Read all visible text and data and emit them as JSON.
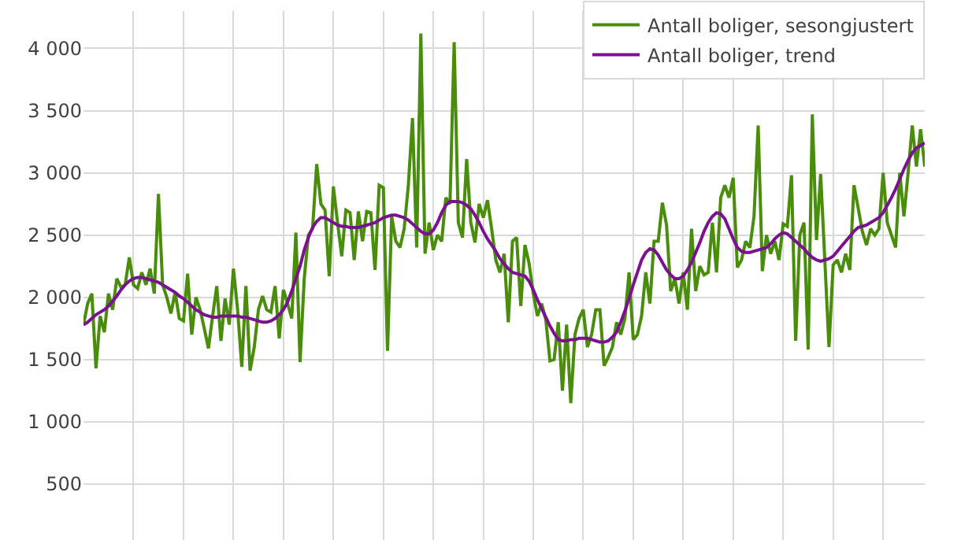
{
  "chart_data": {
    "type": "line",
    "categories": [
      null,
      null,
      null,
      null,
      null,
      null,
      null,
      null,
      null,
      null,
      null,
      null,
      null,
      null,
      null,
      null,
      null,
      null,
      null,
      null,
      null,
      null,
      null,
      null,
      null,
      null,
      null,
      null,
      null,
      null,
      null,
      null,
      null,
      null,
      null,
      null,
      null,
      null,
      null,
      null,
      null,
      null,
      null,
      null,
      null,
      null,
      null,
      null,
      null,
      null,
      null,
      null,
      null,
      null,
      null,
      null,
      null,
      null,
      null,
      null,
      null,
      null,
      null,
      null,
      null,
      null,
      null,
      null,
      null,
      null,
      null,
      null,
      null,
      null,
      null,
      null,
      null,
      null,
      null,
      null,
      null,
      null,
      null,
      null,
      null,
      null,
      null,
      null,
      null,
      null,
      null,
      null,
      null,
      null,
      null,
      null,
      null,
      null,
      null,
      null,
      null,
      null,
      null,
      null,
      null,
      null,
      null,
      null,
      null,
      null,
      null,
      null,
      null,
      null,
      null,
      null,
      null,
      null,
      null,
      null,
      null,
      null,
      null,
      null,
      null,
      null,
      null,
      null,
      null,
      null,
      null,
      null,
      null,
      null,
      null,
      null,
      null,
      null,
      null,
      null,
      null,
      null,
      null,
      null,
      null,
      null,
      null,
      null,
      null,
      null,
      null,
      null,
      null,
      null,
      null,
      null,
      null,
      null,
      null,
      null,
      null,
      null,
      null,
      null,
      null,
      null,
      null,
      null,
      null,
      null,
      null,
      null,
      null,
      null,
      null,
      null,
      null,
      null,
      null,
      null,
      null,
      null,
      null,
      null,
      null,
      null,
      null,
      null,
      null,
      null,
      null,
      null,
      null,
      null,
      null,
      null,
      null,
      null,
      null,
      null,
      null,
      null,
      null
    ],
    "series": [
      {
        "name": "Antall boliger, sesongjustert",
        "color": "#4a8c0c",
        "values": [
          1780,
          1950,
          2030,
          1430,
          1850,
          1720,
          2030,
          1900,
          2150,
          2080,
          2100,
          2320,
          2100,
          2070,
          2200,
          2100,
          2230,
          2030,
          2830,
          2100,
          2000,
          1870,
          2040,
          1830,
          1810,
          2190,
          1700,
          2000,
          1900,
          1750,
          1590,
          1850,
          2090,
          1650,
          1990,
          1780,
          2230,
          1900,
          1440,
          2090,
          1410,
          1600,
          1900,
          2010,
          1900,
          1880,
          2090,
          1670,
          2060,
          1950,
          1830,
          2520,
          1480,
          2150,
          2500,
          2550,
          3070,
          2750,
          2700,
          2170,
          2890,
          2600,
          2330,
          2700,
          2680,
          2300,
          2690,
          2450,
          2690,
          2680,
          2220,
          2900,
          2880,
          1570,
          2650,
          2450,
          2400,
          2550,
          2900,
          3440,
          2400,
          4120,
          2350,
          2600,
          2380,
          2500,
          2450,
          2800,
          2750,
          4050,
          2600,
          2480,
          3110,
          2600,
          2440,
          2750,
          2640,
          2780,
          2550,
          2300,
          2200,
          2350,
          1800,
          2450,
          2480,
          1930,
          2420,
          2270,
          2030,
          1850,
          1950,
          1820,
          1490,
          1500,
          1800,
          1250,
          1780,
          1150,
          1700,
          1830,
          1900,
          1600,
          1700,
          1900,
          1900,
          1450,
          1520,
          1600,
          1800,
          1700,
          1830,
          2200,
          1660,
          1700,
          1850,
          2200,
          1950,
          2450,
          2450,
          2760,
          2580,
          2050,
          2150,
          1950,
          2200,
          1900,
          2550,
          2050,
          2250,
          2180,
          2200,
          2600,
          2200,
          2800,
          2900,
          2800,
          2960,
          2240,
          2300,
          2450,
          2400,
          2650,
          3380,
          2210,
          2500,
          2350,
          2450,
          2300,
          2590,
          2570,
          2980,
          1650,
          2500,
          2600,
          1580,
          3470,
          2460,
          2990,
          2300,
          1600,
          2260,
          2300,
          2200,
          2350,
          2220,
          2900,
          2720,
          2530,
          2420,
          2550,
          2500,
          2550,
          3000,
          2600,
          2500,
          2400,
          3000,
          2650,
          3000,
          3380,
          3050,
          3350,
          3050
        ]
      },
      {
        "name": "Antall boliger, trend",
        "color": "#7a1290",
        "values": [
          1780,
          1800,
          1830,
          1860,
          1880,
          1900,
          1930,
          1970,
          2010,
          2060,
          2100,
          2130,
          2150,
          2160,
          2160,
          2150,
          2140,
          2130,
          2120,
          2100,
          2080,
          2060,
          2040,
          2010,
          1990,
          1960,
          1930,
          1900,
          1880,
          1860,
          1850,
          1840,
          1840,
          1850,
          1850,
          1850,
          1850,
          1850,
          1840,
          1840,
          1830,
          1820,
          1810,
          1800,
          1800,
          1810,
          1830,
          1860,
          1900,
          1960,
          2050,
          2150,
          2250,
          2380,
          2480,
          2560,
          2610,
          2640,
          2640,
          2620,
          2600,
          2580,
          2570,
          2570,
          2560,
          2560,
          2560,
          2570,
          2580,
          2590,
          2600,
          2620,
          2640,
          2650,
          2660,
          2660,
          2650,
          2640,
          2620,
          2590,
          2560,
          2530,
          2510,
          2510,
          2540,
          2600,
          2680,
          2740,
          2770,
          2770,
          2770,
          2760,
          2740,
          2710,
          2660,
          2600,
          2530,
          2470,
          2420,
          2370,
          2310,
          2270,
          2230,
          2200,
          2190,
          2180,
          2170,
          2130,
          2060,
          1980,
          1910,
          1840,
          1770,
          1710,
          1660,
          1650,
          1650,
          1660,
          1660,
          1670,
          1670,
          1670,
          1660,
          1650,
          1640,
          1640,
          1650,
          1680,
          1720,
          1800,
          1890,
          1990,
          2100,
          2200,
          2300,
          2360,
          2390,
          2380,
          2340,
          2280,
          2220,
          2180,
          2150,
          2150,
          2170,
          2220,
          2280,
          2360,
          2440,
          2530,
          2600,
          2650,
          2680,
          2670,
          2630,
          2550,
          2470,
          2400,
          2370,
          2360,
          2360,
          2370,
          2380,
          2390,
          2400,
          2430,
          2470,
          2500,
          2520,
          2510,
          2480,
          2450,
          2420,
          2390,
          2350,
          2320,
          2300,
          2290,
          2300,
          2310,
          2330,
          2370,
          2410,
          2450,
          2490,
          2530,
          2560,
          2570,
          2580,
          2600,
          2620,
          2640,
          2680,
          2740,
          2800,
          2870,
          2950,
          3030,
          3100,
          3160,
          3200,
          3220,
          3240
        ]
      }
    ],
    "ylim": [
      50,
      4300
    ],
    "yticks": [
      {
        "value": 500,
        "label": "500"
      },
      {
        "value": 1000,
        "label": "1 000"
      },
      {
        "value": 1500,
        "label": "1 500"
      },
      {
        "value": 2000,
        "label": "2 000"
      },
      {
        "value": 2500,
        "label": "2 500"
      },
      {
        "value": 3000,
        "label": "3 000"
      },
      {
        "value": 3500,
        "label": "3 500"
      },
      {
        "value": 4000,
        "label": "4 000"
      }
    ],
    "grid": true,
    "legend": "top right",
    "marker": "none",
    "line_style": "solid"
  }
}
